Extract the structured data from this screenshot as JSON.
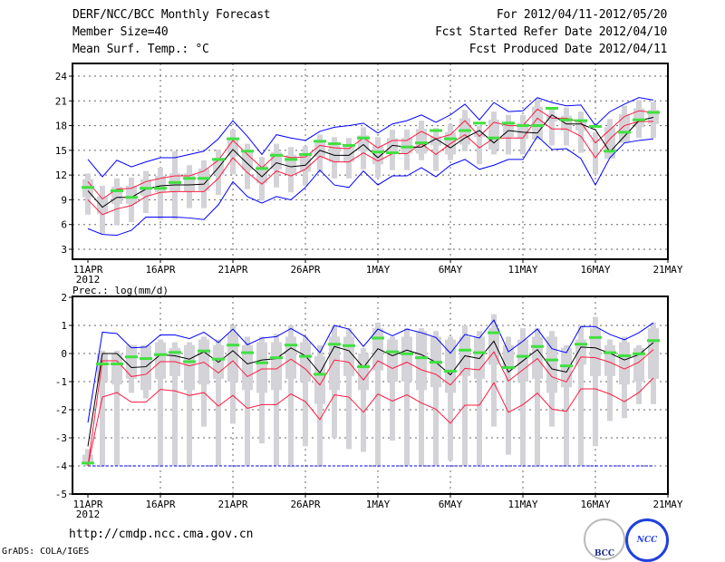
{
  "header": {
    "title": "DERF/NCC/BCC Monthly Forecast",
    "member_size": "Member Size=40",
    "variable": "Mean Surf. Temp.: °C",
    "period": "For 2012/04/11-2012/05/20",
    "fcst_started": "Fcst Started Refer Date 2012/04/10",
    "fcst_produced": "Fcst Produced Date 2012/04/11"
  },
  "footer": {
    "url": "http://cmdp.ncc.cma.gov.cn",
    "grads": "GrADS: COLA/IGES",
    "logo_bcc": "BCC",
    "logo_ncc": "NCC"
  },
  "colors": {
    "mean": "#000000",
    "red": "#ff1a40",
    "blue": "#0000ff",
    "green": "#40e040",
    "bar": "#d3d3d8"
  },
  "chart_data": [
    {
      "type": "line",
      "title": "Mean Surf. Temp.: °C",
      "ylim": [
        3,
        24
      ],
      "yticks": [
        "3",
        "6",
        "9",
        "12",
        "15",
        "18",
        "21",
        "24"
      ],
      "xticks": [
        "11APR",
        "16APR",
        "21APR",
        "26APR",
        "1MAY",
        "6MAY",
        "11MAY",
        "16MAY",
        "21MAY"
      ],
      "year_label": "2012",
      "days": 40,
      "grid": true,
      "mean": [
        10.1,
        8.1,
        9.3,
        9.3,
        10.3,
        10.7,
        10.8,
        10.8,
        10.9,
        12.9,
        15.1,
        13.4,
        11.8,
        13.5,
        13.0,
        13.2,
        15.0,
        14.4,
        14.4,
        15.7,
        14.1,
        15.6,
        15.4,
        15.4,
        16.4,
        15.3,
        16.5,
        17.4,
        15.9,
        17.4,
        17.2,
        17.1,
        19.3,
        18.2,
        18.2,
        17.5,
        14.8,
        16.7,
        18.6,
        19.0
      ],
      "red_upper": [
        11.2,
        9.1,
        10.3,
        10.4,
        11.2,
        11.6,
        11.9,
        11.9,
        12.5,
        13.8,
        16.2,
        14.5,
        12.9,
        14.5,
        14.1,
        14.2,
        15.6,
        15.3,
        15.2,
        16.5,
        15.3,
        16.2,
        16.2,
        17.3,
        16.4,
        16.9,
        18.6,
        16.7,
        18.4,
        18.0,
        18.0,
        20.0,
        18.9,
        18.9,
        18.4,
        15.9,
        17.5,
        19.1,
        19.8,
        19.6
      ],
      "red_lower": [
        9.0,
        7.2,
        7.9,
        8.3,
        9.4,
        9.9,
        10.0,
        10.0,
        10.0,
        11.6,
        14.1,
        12.3,
        10.9,
        12.5,
        11.9,
        12.7,
        14.3,
        13.6,
        13.6,
        14.7,
        13.7,
        14.6,
        14.6,
        15.8,
        14.5,
        15.8,
        16.9,
        15.3,
        16.5,
        16.5,
        16.5,
        18.9,
        17.6,
        17.6,
        16.7,
        14.1,
        16.4,
        18.0,
        18.5,
        18.5
      ],
      "blue_upper": [
        13.9,
        11.8,
        13.8,
        13.0,
        13.6,
        14.1,
        14.1,
        14.5,
        14.9,
        16.4,
        18.6,
        16.7,
        14.5,
        16.9,
        16.5,
        16.2,
        17.3,
        17.8,
        18.0,
        18.3,
        17.1,
        18.2,
        18.6,
        19.3,
        18.4,
        19.3,
        20.6,
        18.7,
        20.8,
        19.7,
        19.8,
        21.4,
        20.8,
        20.4,
        20.5,
        18.0,
        19.7,
        20.6,
        21.4,
        21.1
      ],
      "blue_lower": [
        5.5,
        4.8,
        4.7,
        5.3,
        6.9,
        6.9,
        6.9,
        6.8,
        6.6,
        8.4,
        11.2,
        9.4,
        8.6,
        9.4,
        9.0,
        10.5,
        12.6,
        10.8,
        10.5,
        12.5,
        10.8,
        11.9,
        11.9,
        12.9,
        11.8,
        13.2,
        13.9,
        12.7,
        13.2,
        13.9,
        13.9,
        16.7,
        15.1,
        15.2,
        14.0,
        10.8,
        14.1,
        15.9,
        16.2,
        16.4
      ],
      "observed": [
        10.5,
        null,
        10.1,
        9.3,
        10.4,
        10.4,
        11.1,
        11.6,
        11.6,
        13.9,
        16.4,
        14.9,
        12.8,
        14.4,
        13.9,
        14.5,
        16.1,
        15.8,
        15.6,
        16.5,
        14.8,
        14.7,
        15.4,
        15.9,
        17.4,
        16.4,
        17.4,
        18.3,
        16.5,
        18.3,
        18.0,
        18.0,
        20.1,
        18.7,
        18.6,
        17.9,
        14.9,
        17.2,
        18.7,
        19.6
      ],
      "whisker_low": [
        7.2,
        4.9,
        5.9,
        6.3,
        7.4,
        6.6,
        6.6,
        8.0,
        8.0,
        9.6,
        12.1,
        10.3,
        8.9,
        10.5,
        9.9,
        10.7,
        12.3,
        11.6,
        11.6,
        12.7,
        11.7,
        12.6,
        12.6,
        13.8,
        12.5,
        13.8,
        14.9,
        13.3,
        14.5,
        14.5,
        14.5,
        16.9,
        15.6,
        15.6,
        14.7,
        12.1,
        14.4,
        16.0,
        16.5,
        16.5
      ],
      "whisker_high": [
        12.2,
        10.7,
        11.6,
        11.7,
        12.5,
        12.9,
        14.9,
        13.2,
        13.8,
        15.1,
        17.5,
        15.8,
        14.2,
        15.8,
        15.4,
        15.5,
        16.9,
        16.6,
        16.5,
        17.8,
        16.6,
        17.5,
        17.5,
        18.6,
        17.7,
        18.2,
        19.9,
        18.0,
        19.7,
        19.3,
        19.3,
        21.3,
        20.2,
        20.2,
        19.7,
        17.2,
        18.8,
        20.4,
        21.1,
        20.9
      ],
      "box_low": [
        9.3,
        7.3,
        8.5,
        8.5,
        9.5,
        9.9,
        10.0,
        10.0,
        10.1,
        12.1,
        14.3,
        12.6,
        11.0,
        12.7,
        12.2,
        12.4,
        14.2,
        13.6,
        13.6,
        14.9,
        13.3,
        14.8,
        14.6,
        14.6,
        15.6,
        14.5,
        15.7,
        16.6,
        15.1,
        16.6,
        16.4,
        16.3,
        18.5,
        17.4,
        17.4,
        16.7,
        14.0,
        15.9,
        17.8,
        18.2
      ],
      "box_high": [
        11.5,
        9.4,
        10.6,
        10.7,
        11.5,
        11.9,
        12.2,
        12.2,
        12.8,
        14.1,
        16.5,
        14.8,
        13.2,
        14.8,
        14.4,
        14.5,
        15.9,
        15.6,
        15.5,
        16.8,
        15.6,
        16.5,
        16.5,
        17.6,
        16.7,
        17.2,
        18.9,
        17.0,
        18.7,
        18.3,
        18.3,
        20.3,
        19.2,
        19.2,
        18.7,
        16.2,
        17.8,
        19.4,
        20.1,
        19.9
      ]
    },
    {
      "type": "line",
      "title": "Prec.: log(mm/d)",
      "ylim": [
        -5,
        2
      ],
      "yticks": [
        "-5",
        "-4",
        "-3",
        "-2",
        "-1",
        "0",
        "1",
        "2"
      ],
      "xticks": [
        "11APR",
        "16APR",
        "21APR",
        "26APR",
        "1MAY",
        "6MAY",
        "11MAY",
        "16MAY",
        "21MAY"
      ],
      "year_label": "2012",
      "days": 40,
      "grid": true,
      "baseline": -4,
      "mean": [
        -3.3,
        0.0,
        0.0,
        -0.5,
        -0.47,
        -0.04,
        -0.08,
        -0.2,
        0.06,
        -0.31,
        0.1,
        -0.37,
        -0.23,
        -0.18,
        0.2,
        -0.08,
        -0.69,
        0.25,
        0.1,
        -0.5,
        0.17,
        -0.08,
        0.12,
        -0.04,
        -0.31,
        -0.76,
        -0.08,
        -0.18,
        0.44,
        -0.66,
        -0.26,
        0.14,
        -0.55,
        -0.66,
        0.23,
        0.2,
        0.01,
        -0.23,
        -0.04,
        0.39
      ],
      "red_upper": [
        -4.0,
        -0.26,
        -0.26,
        -0.82,
        -0.74,
        -0.29,
        -0.29,
        -0.44,
        -0.31,
        -0.69,
        -0.26,
        -0.82,
        -0.55,
        -0.55,
        -0.2,
        -0.55,
        -1.12,
        -0.23,
        -0.31,
        -0.94,
        -0.26,
        -0.53,
        -0.31,
        -0.58,
        -0.74,
        -1.12,
        -0.53,
        -0.58,
        0.06,
        -0.98,
        -0.58,
        -0.18,
        -0.83,
        -1.01,
        -0.12,
        -0.15,
        -0.31,
        -0.55,
        -0.31,
        0.14
      ],
      "red_lower": [
        -4.0,
        -1.55,
        -1.39,
        -1.73,
        -1.73,
        -1.28,
        -1.33,
        -1.49,
        -1.39,
        -1.87,
        -1.49,
        -1.95,
        -1.82,
        -1.82,
        -1.44,
        -1.71,
        -2.35,
        -1.47,
        -1.55,
        -2.09,
        -1.44,
        -1.69,
        -1.47,
        -1.76,
        -1.98,
        -2.48,
        -1.84,
        -1.84,
        -1.04,
        -2.09,
        -1.82,
        -1.41,
        -1.98,
        -2.06,
        -1.26,
        -1.26,
        -1.44,
        -1.71,
        -1.39,
        -0.87
      ],
      "blue_upper": [
        -2.46,
        0.76,
        0.71,
        0.2,
        0.23,
        0.66,
        0.66,
        0.53,
        0.76,
        0.39,
        0.87,
        0.31,
        0.55,
        0.6,
        0.89,
        0.6,
        0.03,
        1.0,
        0.87,
        0.25,
        0.87,
        0.63,
        0.87,
        0.74,
        0.57,
        0.01,
        0.68,
        0.55,
        1.19,
        0.06,
        0.44,
        0.87,
        0.17,
        0.03,
        0.96,
        0.96,
        0.68,
        0.49,
        0.74,
        1.09
      ],
      "blue_lower": [
        -4,
        -4,
        -4,
        -4,
        -4,
        -4,
        -4,
        -4,
        -4,
        -4,
        -4,
        -4,
        -4,
        -4,
        -4,
        -4,
        -4,
        -4,
        -4,
        -4,
        -4,
        -4,
        -4,
        -4,
        -4,
        -4,
        -4,
        -4,
        -4,
        -4,
        -4,
        -4,
        -4,
        -4,
        -4,
        -4,
        -4,
        -4,
        -4,
        -4
      ],
      "observed": [
        -3.9,
        -0.37,
        -0.37,
        -0.12,
        -0.18,
        -0.04,
        0.04,
        -0.29,
        0.09,
        -0.2,
        0.3,
        0.03,
        -0.33,
        -0.15,
        0.3,
        -0.1,
        -0.74,
        0.33,
        0.28,
        -0.47,
        0.55,
        0.06,
        -0.01,
        -0.15,
        -0.31,
        -0.63,
        0.12,
        0.03,
        0.74,
        -0.5,
        -0.1,
        0.25,
        -0.23,
        -0.44,
        0.33,
        0.57,
        0.03,
        -0.08,
        -0.01,
        0.46
      ],
      "whisker_low": [
        -4,
        -4,
        -4,
        -1.4,
        -1.6,
        -4,
        -4,
        -4,
        -2.6,
        -4,
        -2.5,
        -4,
        -3.2,
        -4,
        -4,
        -3.3,
        -4,
        -3.0,
        -3.4,
        -3.5,
        -4,
        -3.1,
        -4,
        -4,
        -4,
        -3.8,
        -4,
        -4,
        -2.6,
        -3.6,
        -4,
        -4,
        -2.6,
        -4,
        -4,
        -3.3,
        -2.4,
        -2.3,
        -1.8,
        -1.8
      ],
      "whisker_high": [
        -3.4,
        0.1,
        0.1,
        0.3,
        0.3,
        0.5,
        0.4,
        0.4,
        0.6,
        0.5,
        1.0,
        0.6,
        0.6,
        0.7,
        1.0,
        0.6,
        0.3,
        1.0,
        0.9,
        0.2,
        1.1,
        0.6,
        0.9,
        0.9,
        0.8,
        0.6,
        1.0,
        0.8,
        1.4,
        0.6,
        0.9,
        0.9,
        0.8,
        0.3,
        1.0,
        1.3,
        0.5,
        0.6,
        0.3,
        1.1
      ],
      "box_low": [
        -3.9,
        -1.0,
        -1.1,
        -0.9,
        -1.3,
        -0.9,
        -0.8,
        -1.3,
        -1.1,
        -0.9,
        -1.0,
        -1.3,
        -1.4,
        -1.3,
        -0.9,
        -1.0,
        -1.8,
        -1.3,
        -0.8,
        -1.3,
        -0.6,
        -1.0,
        -1.0,
        -1.3,
        -1.2,
        -1.4,
        -0.8,
        -0.9,
        -0.4,
        -0.5,
        -1.0,
        -0.9,
        -1.4,
        -1.2,
        -0.4,
        -0.8,
        -0.8,
        -1.1,
        -1.0,
        -0.9
      ],
      "box_high": [
        -3.6,
        0.0,
        0.0,
        0.3,
        0.3,
        0.4,
        0.2,
        0.3,
        0.5,
        0.3,
        0.7,
        0.3,
        0.4,
        0.4,
        0.6,
        0.4,
        -0.1,
        0.6,
        0.6,
        0.0,
        0.9,
        0.5,
        0.6,
        0.8,
        0.6,
        0.5,
        0.6,
        0.6,
        0.9,
        0.3,
        0.5,
        0.6,
        0.6,
        0.2,
        0.5,
        0.9,
        0.3,
        0.4,
        0.2,
        0.9
      ]
    }
  ]
}
